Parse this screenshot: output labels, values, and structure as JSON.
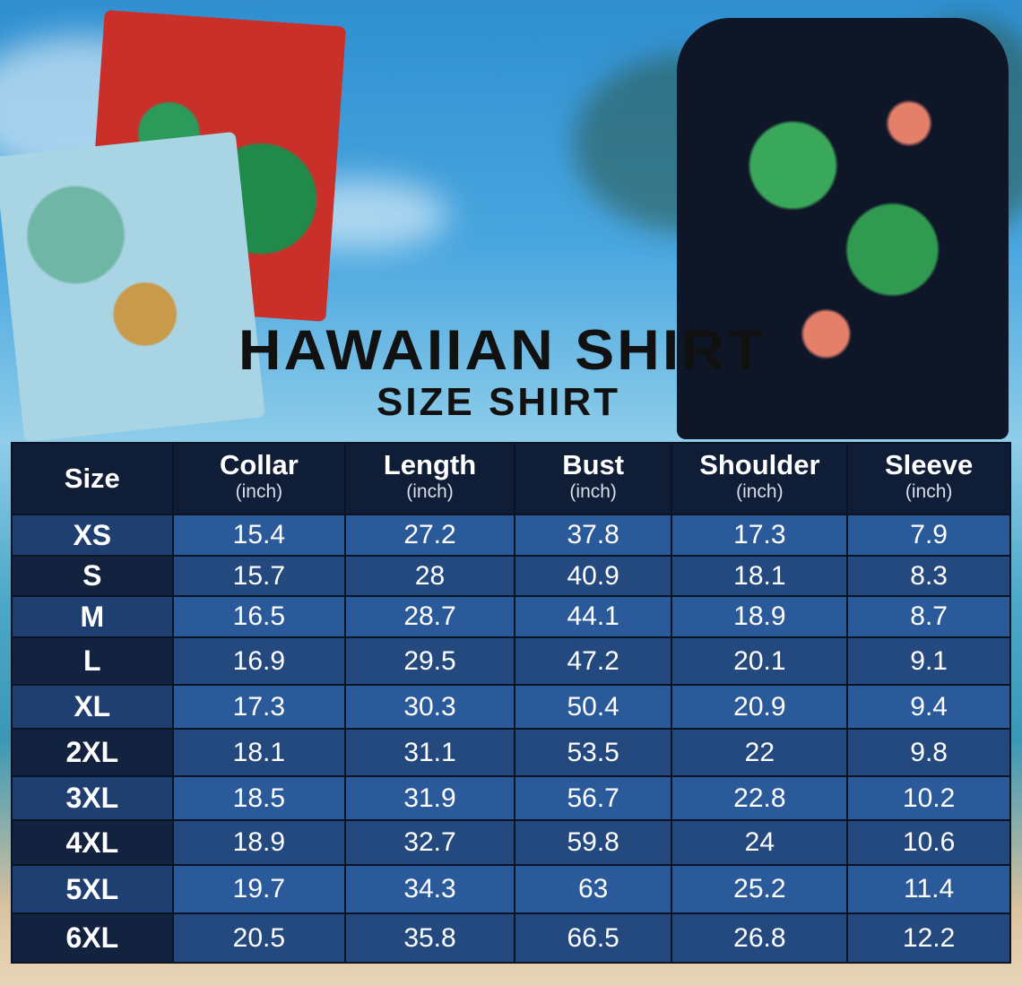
{
  "title": "HAWAIIAN SHIRT",
  "subtitle": "SIZE SHIRT",
  "table": {
    "headers": [
      {
        "label": "Size",
        "unit": ""
      },
      {
        "label": "Collar",
        "unit": "(inch)"
      },
      {
        "label": "Length",
        "unit": "(inch)"
      },
      {
        "label": "Bust",
        "unit": "(inch)"
      },
      {
        "label": "Shoulder",
        "unit": "(inch)"
      },
      {
        "label": "Sleeve",
        "unit": "(inch)"
      }
    ],
    "rows": [
      [
        "XS",
        "15.4",
        "27.2",
        "37.8",
        "17.3",
        "7.9"
      ],
      [
        "S",
        "15.7",
        "28",
        "40.9",
        "18.1",
        "8.3"
      ],
      [
        "M",
        "16.5",
        "28.7",
        "44.1",
        "18.9",
        "8.7"
      ],
      [
        "L",
        "16.9",
        "29.5",
        "47.2",
        "20.1",
        "9.1"
      ],
      [
        "XL",
        "17.3",
        "30.3",
        "50.4",
        "20.9",
        "9.4"
      ],
      [
        "2XL",
        "18.1",
        "31.1",
        "53.5",
        "22",
        "9.8"
      ],
      [
        "3XL",
        "18.5",
        "31.9",
        "56.7",
        "22.8",
        "10.2"
      ],
      [
        "4XL",
        "18.9",
        "32.7",
        "59.8",
        "24",
        "10.6"
      ],
      [
        "5XL",
        "19.7",
        "34.3",
        "63",
        "25.2",
        "11.4"
      ],
      [
        "6XL",
        "20.5",
        "35.8",
        "66.5",
        "26.8",
        "12.2"
      ]
    ]
  },
  "colors": {
    "header_bg": "#101d36",
    "row_light": "#2b5a9b",
    "row_dark": "#24497f",
    "title": "#111111"
  }
}
